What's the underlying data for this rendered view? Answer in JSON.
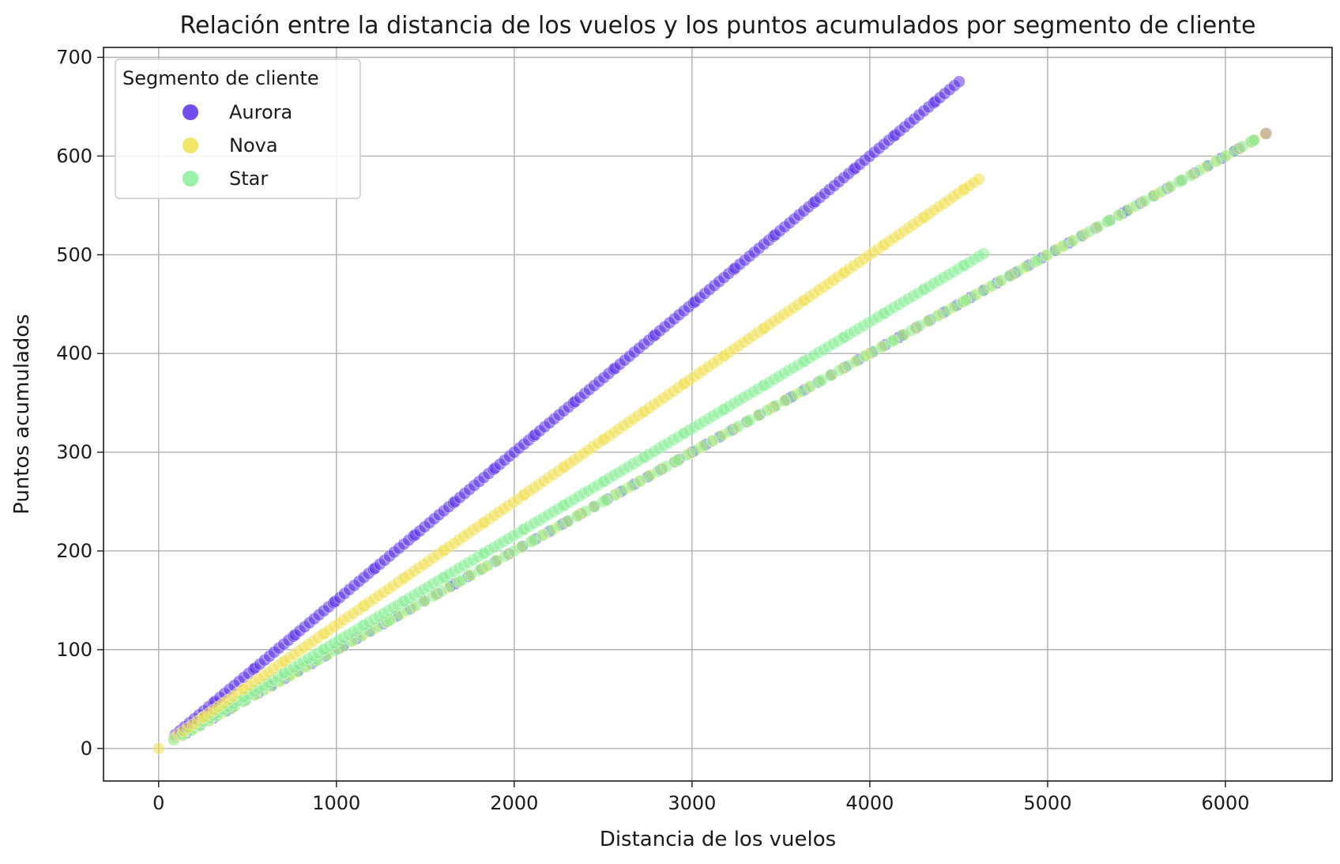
{
  "chart_data": {
    "type": "scatter",
    "title": "Relación entre la distancia de los vuelos y los puntos acumulados por segmento de cliente",
    "xlabel": "Distancia de los vuelos",
    "ylabel": "Puntos acumulados",
    "xlim": [
      -310,
      6600
    ],
    "ylim": [
      -33,
      710
    ],
    "xticks": [
      0,
      1000,
      2000,
      3000,
      4000,
      5000,
      6000
    ],
    "yticks": [
      0,
      100,
      200,
      300,
      400,
      500,
      600,
      700
    ],
    "grid": true,
    "legend": {
      "title": "Segmento de cliente",
      "placement": "top-left",
      "entries": [
        "Aurora",
        "Nova",
        "Star"
      ]
    },
    "marker_opacity": 0.55,
    "series": [
      {
        "name": "Aurora",
        "color": "#5a2ee8",
        "bands": [
          {
            "slope": 0.15,
            "x": [
              100,
              4520
            ],
            "step": 25
          },
          {
            "slope": 0.1,
            "x": [
              150,
              6250
            ],
            "step": 70
          }
        ]
      },
      {
        "name": "Nova",
        "color": "#f0e050",
        "bands": [
          {
            "slope": 0.125,
            "x": [
              90,
              4620
            ],
            "step": 25
          },
          {
            "slope": 0.1,
            "x": [
              120,
              6280
            ],
            "step": 60
          }
        ]
      },
      {
        "name": "Star",
        "color": "#88ee98",
        "bands": [
          {
            "slope": 0.108,
            "x": [
              140,
              4660
            ],
            "step": 25
          },
          {
            "slope": 0.1,
            "x": [
              100,
              6200
            ],
            "step": 45
          }
        ]
      }
    ],
    "extra_points": [
      {
        "series": "Nova",
        "x": 0,
        "y": 0
      }
    ]
  }
}
